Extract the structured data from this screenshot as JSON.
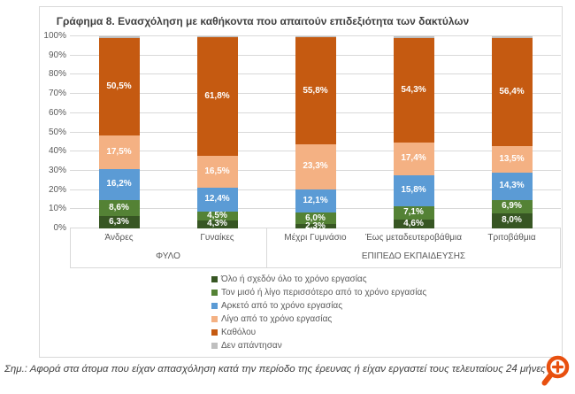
{
  "figure": {
    "title": "Γράφημα 8. Ενασχόληση με καθήκοντα που απαιτούν επιδεξιότητα των δακτύλων"
  },
  "chart_data": {
    "type": "bar",
    "stacked": true,
    "orientation": "vertical",
    "title": "Γράφημα 8. Ενασχόληση με καθήκοντα που απαιτούν επιδεξιότητα των δακτύλων",
    "categories": [
      "Άνδρες",
      "Γυναίκες",
      "Μέχρι Γυμνάσιο",
      "Έως μεταδευτεροβάθμια",
      "Τριτοβάθμια"
    ],
    "category_groups": [
      {
        "label": "ΦΥΛΟ",
        "span": 2
      },
      {
        "label": "ΕΠΙΠΕΔΟ  ΕΚΠΑΙΔΕΥΣΗΣ",
        "span": 3
      }
    ],
    "series": [
      {
        "name": "Όλο ή σχεδόν όλο το χρόνο εργασίας",
        "color": "#375623",
        "values": [
          6.3,
          4.3,
          2.3,
          4.6,
          8.0
        ],
        "labels": [
          "6,3%",
          "4,3%",
          "2,3%",
          "4,6%",
          "8,0%"
        ]
      },
      {
        "name": "Τον μισό ή λίγο περισσότερο από το χρόνο εργασίας",
        "color": "#548235",
        "values": [
          8.6,
          4.5,
          6.0,
          7.1,
          6.9
        ],
        "labels": [
          "8,6%",
          "4,5%",
          "6,0%",
          "7,1%",
          "6,9%"
        ]
      },
      {
        "name": "Αρκετό από το χρόνο εργασίας",
        "color": "#5B9BD5",
        "values": [
          16.2,
          12.4,
          12.1,
          15.8,
          14.3
        ],
        "labels": [
          "16,2%",
          "12,4%",
          "12,1%",
          "15,8%",
          "14,3%"
        ]
      },
      {
        "name": "Λίγο από το χρόνο εργασίας",
        "color": "#F4B183",
        "values": [
          17.5,
          16.5,
          23.3,
          17.4,
          13.5
        ],
        "labels": [
          "17,5%",
          "16,5%",
          "23,3%",
          "17,4%",
          "13,5%"
        ]
      },
      {
        "name": "Καθόλου",
        "color": "#C55A11",
        "values": [
          50.5,
          61.8,
          55.8,
          54.3,
          56.4
        ],
        "labels": [
          "50,5%",
          "61,8%",
          "55,8%",
          "54,3%",
          "56,4%"
        ]
      },
      {
        "name": "Δεν απάντησαν",
        "color": "#BFBFBF",
        "values": [
          0.9,
          0.5,
          0.5,
          0.8,
          0.9
        ],
        "labels": [
          "",
          "",
          "",
          "",
          ""
        ]
      }
    ],
    "y_ticks": [
      "0%",
      "10%",
      "20%",
      "30%",
      "40%",
      "50%",
      "60%",
      "70%",
      "80%",
      "90%",
      "100%"
    ],
    "ylim": [
      0,
      100
    ],
    "grid": true,
    "legend_position": "bottom"
  },
  "footnote": "Σημ.: Αφορά στα άτομα που είχαν απασχόληση κατά την περίοδο της έρευνας ή είχαν εργαστεί τους τελευταίους 24 μήνες",
  "icons": {
    "zoom_in": "magnifier-plus"
  },
  "colors": {
    "frame_border": "#D9D9D9",
    "gridline": "#D9D9D9",
    "axis_text": "#595959",
    "title_text": "#404040",
    "label_text": "#FFFFFF",
    "footnote_text": "#404040",
    "zoom_icon": "#E8500F",
    "background": "#FFFFFF"
  }
}
